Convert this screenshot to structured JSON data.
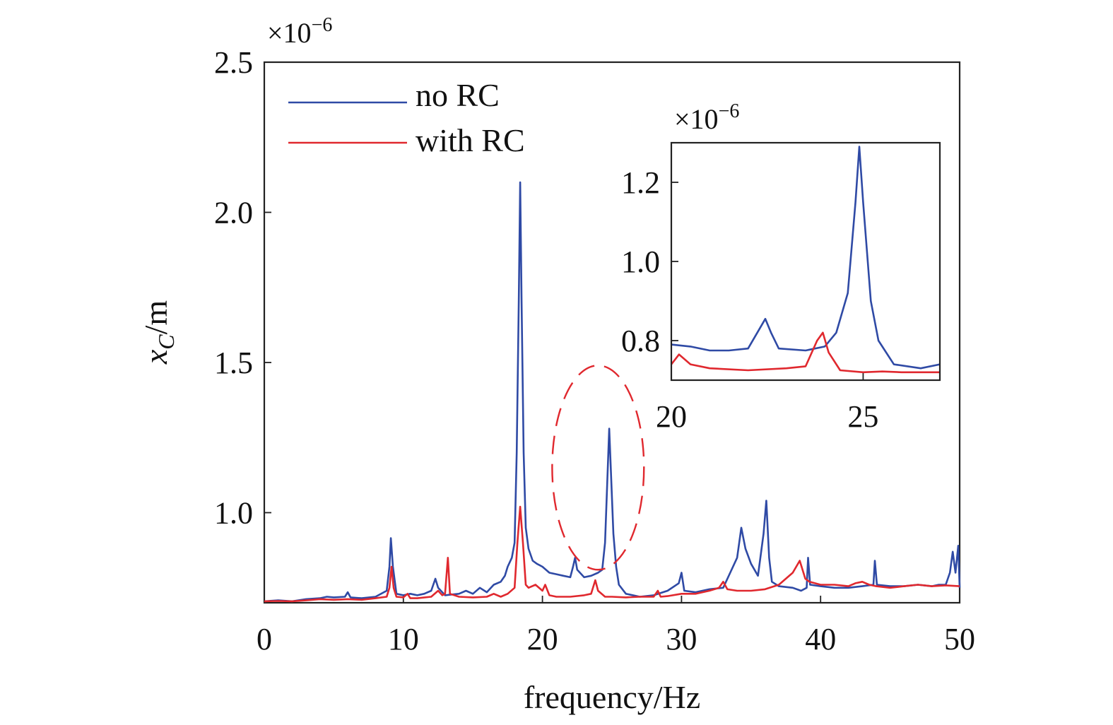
{
  "chart_data": [
    {
      "type": "line",
      "xlabel": "frequency/Hz",
      "ylabel_main": "x",
      "ylabel_sub": "C",
      "ylabel_unit": "/m",
      "y_multiplier": "×10",
      "y_multiplier_exp": "−6",
      "xlim": [
        0,
        50
      ],
      "ylim": [
        0.7,
        2.5
      ],
      "xticks": [
        0,
        10,
        20,
        30,
        40,
        50
      ],
      "xtick_labels": [
        "0",
        "10",
        "20",
        "30",
        "40",
        "50"
      ],
      "yticks": [
        1.0,
        1.5,
        2.0,
        2.5
      ],
      "ytick_labels": [
        "1.0",
        "1.5",
        "2.0",
        "2.5"
      ],
      "legend": {
        "placement": "top-left",
        "entries": [
          "no RC",
          "with RC"
        ]
      },
      "highlight_ellipse": {
        "center": [
          24.0,
          1.15
        ],
        "radius": [
          3.3,
          0.34
        ],
        "color": "#e0282e"
      },
      "series": [
        {
          "name": "no RC",
          "color": "#2f4aa5",
          "points": [
            [
              0,
              0.705
            ],
            [
              1,
              0.708
            ],
            [
              2,
              0.705
            ],
            [
              3,
              0.712
            ],
            [
              4,
              0.715
            ],
            [
              4.5,
              0.72
            ],
            [
              5,
              0.718
            ],
            [
              5.8,
              0.72
            ],
            [
              6,
              0.735
            ],
            [
              6.2,
              0.718
            ],
            [
              7,
              0.715
            ],
            [
              8,
              0.72
            ],
            [
              8.8,
              0.74
            ],
            [
              9,
              0.82
            ],
            [
              9.1,
              0.915
            ],
            [
              9.25,
              0.82
            ],
            [
              9.5,
              0.73
            ],
            [
              10,
              0.725
            ],
            [
              10.5,
              0.73
            ],
            [
              11,
              0.725
            ],
            [
              11.5,
              0.73
            ],
            [
              12,
              0.74
            ],
            [
              12.3,
              0.78
            ],
            [
              12.5,
              0.75
            ],
            [
              13,
              0.725
            ],
            [
              14,
              0.73
            ],
            [
              14.5,
              0.74
            ],
            [
              15,
              0.73
            ],
            [
              15.5,
              0.75
            ],
            [
              16,
              0.735
            ],
            [
              16.5,
              0.76
            ],
            [
              17,
              0.77
            ],
            [
              17.3,
              0.79
            ],
            [
              17.5,
              0.82
            ],
            [
              17.8,
              0.85
            ],
            [
              18,
              0.9
            ],
            [
              18.15,
              1.2
            ],
            [
              18.3,
              1.7
            ],
            [
              18.4,
              2.1
            ],
            [
              18.5,
              1.7
            ],
            [
              18.65,
              1.2
            ],
            [
              18.8,
              0.95
            ],
            [
              19,
              0.88
            ],
            [
              19.3,
              0.84
            ],
            [
              19.6,
              0.83
            ],
            [
              20,
              0.82
            ],
            [
              20.5,
              0.8
            ],
            [
              21,
              0.795
            ],
            [
              21.5,
              0.79
            ],
            [
              22,
              0.785
            ],
            [
              22.2,
              0.82
            ],
            [
              22.35,
              0.85
            ],
            [
              22.5,
              0.81
            ],
            [
              23,
              0.785
            ],
            [
              23.5,
              0.79
            ],
            [
              24,
              0.8
            ],
            [
              24.3,
              0.81
            ],
            [
              24.5,
              0.9
            ],
            [
              24.8,
              1.28
            ],
            [
              25.1,
              0.93
            ],
            [
              25.3,
              0.82
            ],
            [
              25.5,
              0.76
            ],
            [
              26,
              0.73
            ],
            [
              27,
              0.72
            ],
            [
              28,
              0.725
            ],
            [
              29,
              0.74
            ],
            [
              29.8,
              0.765
            ],
            [
              30,
              0.8
            ],
            [
              30.2,
              0.74
            ],
            [
              31,
              0.735
            ],
            [
              32,
              0.745
            ],
            [
              33,
              0.75
            ],
            [
              33.5,
              0.8
            ],
            [
              34,
              0.85
            ],
            [
              34.3,
              0.95
            ],
            [
              34.6,
              0.88
            ],
            [
              35,
              0.83
            ],
            [
              35.5,
              0.79
            ],
            [
              35.9,
              0.93
            ],
            [
              36.1,
              1.04
            ],
            [
              36.3,
              0.85
            ],
            [
              36.5,
              0.77
            ],
            [
              37,
              0.755
            ],
            [
              38,
              0.75
            ],
            [
              38.6,
              0.74
            ],
            [
              39,
              0.75
            ],
            [
              39.1,
              0.85
            ],
            [
              39.25,
              0.76
            ],
            [
              40,
              0.755
            ],
            [
              41,
              0.75
            ],
            [
              42,
              0.75
            ],
            [
              43,
              0.755
            ],
            [
              43.8,
              0.76
            ],
            [
              43.9,
              0.84
            ],
            [
              44.05,
              0.76
            ],
            [
              45,
              0.755
            ],
            [
              46,
              0.755
            ],
            [
              47,
              0.76
            ],
            [
              48,
              0.755
            ],
            [
              48.5,
              0.76
            ],
            [
              49,
              0.76
            ],
            [
              49.3,
              0.8
            ],
            [
              49.5,
              0.87
            ],
            [
              49.7,
              0.8
            ],
            [
              49.9,
              0.89
            ],
            [
              50,
              0.75
            ]
          ]
        },
        {
          "name": "with RC",
          "color": "#e0282e",
          "points": [
            [
              0,
              0.705
            ],
            [
              1,
              0.706
            ],
            [
              2,
              0.705
            ],
            [
              3,
              0.708
            ],
            [
              4,
              0.712
            ],
            [
              5,
              0.71
            ],
            [
              6,
              0.712
            ],
            [
              7,
              0.71
            ],
            [
              8,
              0.715
            ],
            [
              8.8,
              0.72
            ],
            [
              9,
              0.75
            ],
            [
              9.15,
              0.82
            ],
            [
              9.3,
              0.75
            ],
            [
              9.5,
              0.72
            ],
            [
              10,
              0.718
            ],
            [
              10.3,
              0.73
            ],
            [
              10.5,
              0.715
            ],
            [
              11,
              0.715
            ],
            [
              12,
              0.72
            ],
            [
              12.5,
              0.74
            ],
            [
              12.8,
              0.725
            ],
            [
              13,
              0.73
            ],
            [
              13.2,
              0.85
            ],
            [
              13.35,
              0.73
            ],
            [
              14,
              0.72
            ],
            [
              15,
              0.718
            ],
            [
              16,
              0.72
            ],
            [
              16.5,
              0.73
            ],
            [
              17,
              0.72
            ],
            [
              17.5,
              0.73
            ],
            [
              18,
              0.75
            ],
            [
              18.2,
              0.9
            ],
            [
              18.4,
              1.02
            ],
            [
              18.6,
              0.9
            ],
            [
              18.8,
              0.76
            ],
            [
              19,
              0.75
            ],
            [
              19.5,
              0.76
            ],
            [
              20,
              0.74
            ],
            [
              20.2,
              0.76
            ],
            [
              20.5,
              0.725
            ],
            [
              21,
              0.72
            ],
            [
              22,
              0.72
            ],
            [
              23,
              0.725
            ],
            [
              23.5,
              0.73
            ],
            [
              23.8,
              0.775
            ],
            [
              24,
              0.74
            ],
            [
              24.5,
              0.72
            ],
            [
              25,
              0.72
            ],
            [
              26,
              0.718
            ],
            [
              27,
              0.72
            ],
            [
              28,
              0.72
            ],
            [
              28.3,
              0.74
            ],
            [
              28.5,
              0.72
            ],
            [
              29,
              0.722
            ],
            [
              30,
              0.73
            ],
            [
              31,
              0.73
            ],
            [
              32,
              0.74
            ],
            [
              32.7,
              0.75
            ],
            [
              33,
              0.77
            ],
            [
              33.3,
              0.745
            ],
            [
              34,
              0.74
            ],
            [
              35,
              0.74
            ],
            [
              36,
              0.745
            ],
            [
              37,
              0.76
            ],
            [
              38,
              0.8
            ],
            [
              38.5,
              0.84
            ],
            [
              38.9,
              0.78
            ],
            [
              39.2,
              0.77
            ],
            [
              40,
              0.76
            ],
            [
              41,
              0.76
            ],
            [
              42,
              0.755
            ],
            [
              42.5,
              0.765
            ],
            [
              43,
              0.77
            ],
            [
              43.5,
              0.76
            ],
            [
              44,
              0.755
            ],
            [
              45,
              0.75
            ],
            [
              46,
              0.755
            ],
            [
              47,
              0.76
            ],
            [
              48,
              0.755
            ],
            [
              49,
              0.758
            ],
            [
              50,
              0.755
            ]
          ]
        }
      ]
    },
    {
      "type": "line",
      "role": "inset",
      "y_multiplier": "×10",
      "y_multiplier_exp": "−6",
      "xlim": [
        20,
        27
      ],
      "ylim": [
        0.7,
        1.3
      ],
      "xticks": [
        20,
        25
      ],
      "xtick_labels": [
        "20",
        "25"
      ],
      "yticks": [
        0.8,
        1.0,
        1.2
      ],
      "ytick_labels": [
        "0.8",
        "1.0",
        "1.2"
      ],
      "series": [
        {
          "name": "no RC",
          "color": "#2f4aa5",
          "points": [
            [
              20,
              0.79
            ],
            [
              20.5,
              0.785
            ],
            [
              21,
              0.775
            ],
            [
              21.5,
              0.775
            ],
            [
              22,
              0.78
            ],
            [
              22.3,
              0.83
            ],
            [
              22.45,
              0.855
            ],
            [
              22.6,
              0.82
            ],
            [
              22.8,
              0.78
            ],
            [
              23.5,
              0.775
            ],
            [
              24,
              0.785
            ],
            [
              24.3,
              0.82
            ],
            [
              24.6,
              0.92
            ],
            [
              24.8,
              1.15
            ],
            [
              24.9,
              1.29
            ],
            [
              25,
              1.15
            ],
            [
              25.2,
              0.9
            ],
            [
              25.4,
              0.8
            ],
            [
              25.8,
              0.74
            ],
            [
              26.5,
              0.73
            ],
            [
              27,
              0.74
            ]
          ]
        },
        {
          "name": "with RC",
          "color": "#e0282e",
          "points": [
            [
              20,
              0.74
            ],
            [
              20.2,
              0.765
            ],
            [
              20.5,
              0.74
            ],
            [
              21,
              0.73
            ],
            [
              22,
              0.725
            ],
            [
              23,
              0.73
            ],
            [
              23.5,
              0.735
            ],
            [
              23.8,
              0.8
            ],
            [
              23.95,
              0.82
            ],
            [
              24.1,
              0.77
            ],
            [
              24.4,
              0.725
            ],
            [
              25,
              0.72
            ],
            [
              25.5,
              0.722
            ],
            [
              26,
              0.72
            ],
            [
              26.5,
              0.72
            ],
            [
              27,
              0.72
            ]
          ]
        }
      ]
    }
  ]
}
